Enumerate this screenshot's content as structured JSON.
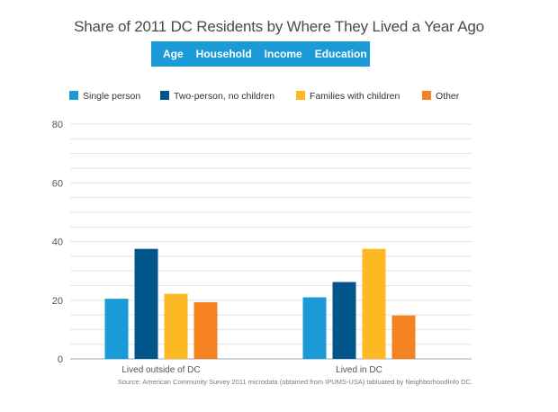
{
  "title": "Share of 2011 DC Residents by Where They Lived a Year Ago",
  "tabs": [
    "Age",
    "Household",
    "Income",
    "Education"
  ],
  "source": "Source: American Community Survey 2011 microdata (obtained from IPUMS-USA) tabluated by NeighborhoodInfo DC.",
  "colors": {
    "Single person": "#1a9ad6",
    "Two-person, no children": "#02558b",
    "Families with children": "#fdb924",
    "Other": "#f58220"
  },
  "chart_data": {
    "type": "bar",
    "categories": [
      "Lived outside of DC",
      "Lived in DC"
    ],
    "series": [
      {
        "name": "Single person",
        "values": [
          20.5,
          21
        ]
      },
      {
        "name": "Two-person, no children",
        "values": [
          37.5,
          26.2
        ]
      },
      {
        "name": "Families with children",
        "values": [
          22.2,
          37.5
        ]
      },
      {
        "name": "Other",
        "values": [
          19.3,
          14.8
        ]
      }
    ],
    "ylim": [
      0,
      80
    ],
    "yticks": [
      0,
      20,
      40,
      60,
      80
    ],
    "grid": true,
    "legend": "top"
  }
}
